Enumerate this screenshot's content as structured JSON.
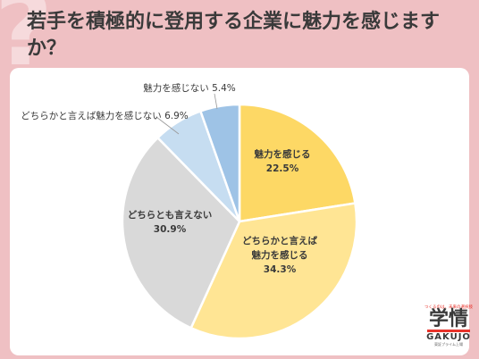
{
  "title": "若手を積極的に登用する企業に魅力を感じますか？",
  "logo": {
    "tagline": "つくるのは、未来の選択肢",
    "main": "学情",
    "sub": "GAKUJO",
    "small": "東証プライム上場"
  },
  "chart_data": {
    "type": "pie",
    "title": "若手を積極的に登用する企業に魅力を感じますか？",
    "start_angle_deg": 0,
    "direction": "clockwise",
    "slices": [
      {
        "label": "魅力を感じる",
        "value": 22.5,
        "display": "22.5%",
        "color": "#fdd865"
      },
      {
        "label": "どちらかと言えば魅力を感じる",
        "label_lines": [
          "どちらかと言えば",
          "魅力を感じる"
        ],
        "value": 34.3,
        "display": "34.3%",
        "color": "#ffe594"
      },
      {
        "label": "どちらとも言えない",
        "value": 30.9,
        "display": "30.9%",
        "color": "#d9d9d9"
      },
      {
        "label": "どちらかと言えば魅力を感じない",
        "value": 6.9,
        "display": "6.9%",
        "color": "#c6ddf1"
      },
      {
        "label": "魅力を感じない",
        "value": 5.4,
        "display": "5.4%",
        "color": "#9ec3e6"
      }
    ]
  }
}
